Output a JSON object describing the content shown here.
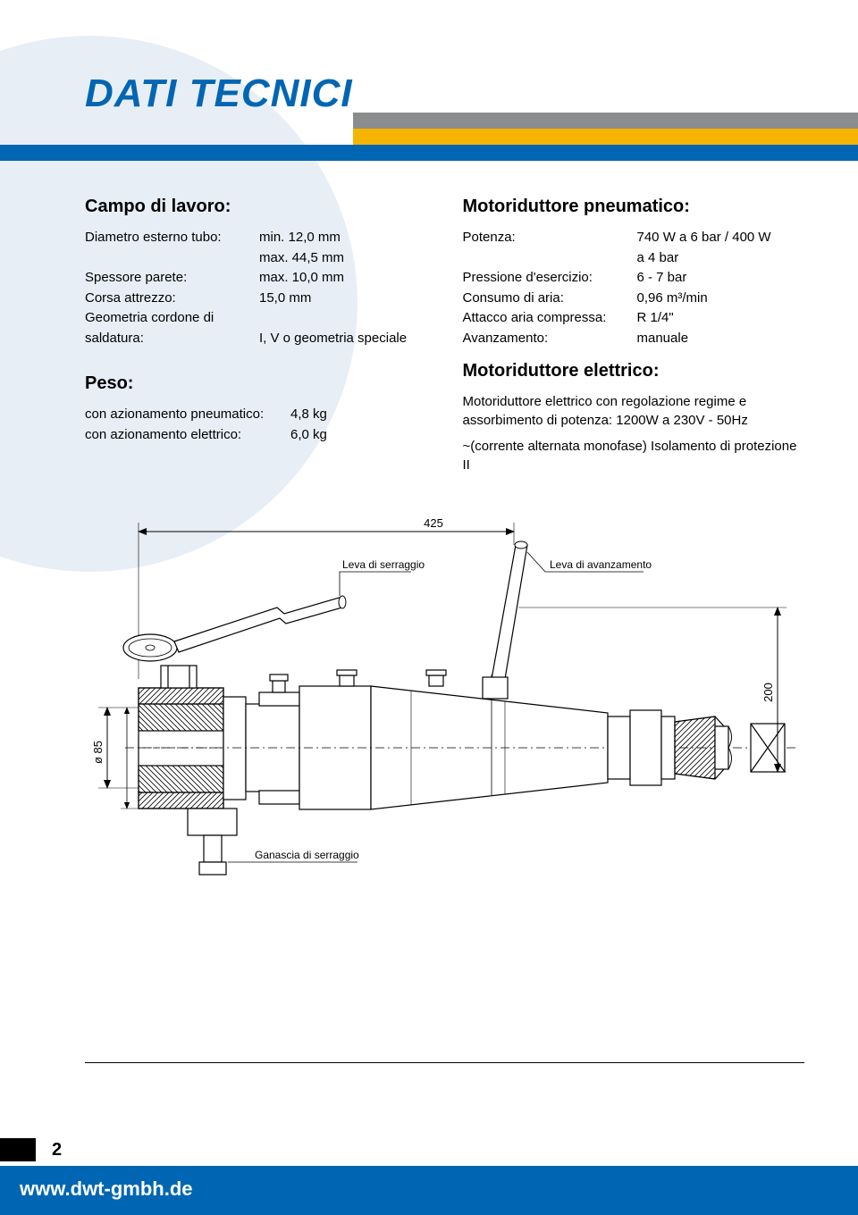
{
  "colors": {
    "bg_circle": "#e8eef5",
    "title": "#0066b3",
    "bar_grey": "#8a8c8e",
    "bar_yellow": "#f5b400",
    "bar_blue": "#0066b3",
    "text": "#000000",
    "footer_bg": "#0066b3",
    "footer_text": "#ffffff",
    "diagram_stroke": "#000000",
    "diagram_fill": "#ffffff",
    "hatch": "#000000",
    "label_font_size": 10
  },
  "page": {
    "title": "DATI TECNICI",
    "number": "2",
    "footer_url": "www.dwt-gmbh.de"
  },
  "left": {
    "campo_title": "Campo di lavoro:",
    "rows": [
      {
        "label": "Diametro esterno tubo:",
        "value": "min. 12,0 mm"
      },
      {
        "label": "",
        "value": "max. 44,5 mm"
      },
      {
        "label": "Spessore parete:",
        "value": "max. 10,0 mm"
      },
      {
        "label": "Corsa attrezzo:",
        "value": "15,0 mm"
      },
      {
        "label": "Geometria cordone di",
        "value": ""
      },
      {
        "label": "saldatura:",
        "value": "I, V o geometria speciale"
      }
    ],
    "peso_title": "Peso:",
    "peso_rows": [
      {
        "label": "con azionamento pneumatico:",
        "value": "4,8 kg"
      },
      {
        "label": "con azionamento elettrico:",
        "value": "6,0 kg"
      }
    ]
  },
  "right": {
    "motor_pneu_title": "Motoriduttore pneumatico:",
    "pneu_rows": [
      {
        "label": "Potenza:",
        "value": "740 W a 6 bar / 400 W"
      },
      {
        "label": "",
        "value": "a 4 bar"
      },
      {
        "label": "Pressione d'esercizio:",
        "value": "6 - 7 bar"
      },
      {
        "label": "Consumo di aria:",
        "value": "0,96 m³/min"
      },
      {
        "label": "Attacco aria compressa:",
        "value": "R 1/4\""
      },
      {
        "label": "Avanzamento:",
        "value": "manuale"
      }
    ],
    "motor_elec_title": "Motoriduttore elettrico:",
    "elec_para1": "Motoriduttore elettrico con regolazione regime e assorbimento di potenza: 1200W a 230V - 50Hz",
    "elec_para2": "~(corrente alternata monofase) Isolamento di protezione II"
  },
  "diagram": {
    "dim_top": "425",
    "dim_right": "200",
    "dim_left": "ø 85",
    "label_clamp_lever": "Leva di serraggio",
    "label_feed_lever": "Leva di avanzamento",
    "label_clamp_jaw": "Ganascia di serraggio"
  }
}
